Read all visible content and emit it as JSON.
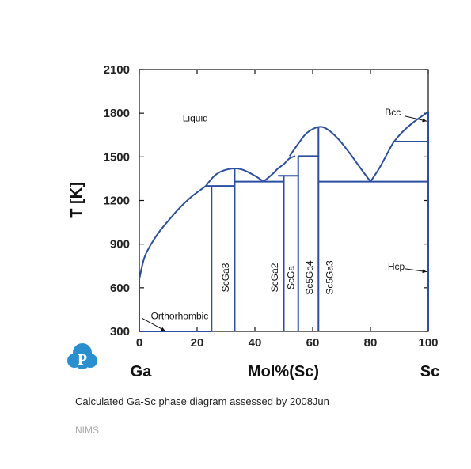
{
  "chart_data": {
    "type": "line",
    "subtype": "phase-diagram",
    "xlabel": "Mol%(Sc)",
    "ylabel": "T [K]",
    "xlim": [
      0,
      100
    ],
    "ylim": [
      300,
      2100
    ],
    "x_ticks": [
      0,
      20,
      40,
      60,
      80,
      100
    ],
    "y_ticks": [
      300,
      600,
      900,
      1200,
      1500,
      1800,
      2100
    ],
    "x_end_labels": {
      "left": "Ga",
      "right": "Sc"
    },
    "grid": false,
    "line_color": "#2a4ea0",
    "liquidus": [
      {
        "name": "Ga-rich liquidus",
        "points": [
          [
            0,
            660
          ],
          [
            2,
            820
          ],
          [
            6,
            960
          ],
          [
            10,
            1060
          ],
          [
            14,
            1150
          ],
          [
            18,
            1225
          ],
          [
            21,
            1270
          ],
          [
            23,
            1300
          ]
        ]
      },
      {
        "name": "ScGa3 liquidus",
        "points": [
          [
            23,
            1300
          ],
          [
            26,
            1370
          ],
          [
            29,
            1405
          ],
          [
            33,
            1420
          ],
          [
            36,
            1410
          ],
          [
            40,
            1370
          ],
          [
            43,
            1330
          ]
        ]
      },
      {
        "name": "ScGa2 liquidus",
        "points": [
          [
            43,
            1330
          ],
          [
            46,
            1380
          ],
          [
            48,
            1420
          ],
          [
            50,
            1450
          ],
          [
            52,
            1490
          ],
          [
            54,
            1505
          ]
        ]
      },
      {
        "name": "Sc5Ga4 liquidus",
        "points": [
          [
            52,
            1505
          ],
          [
            55,
            1590
          ],
          [
            58,
            1665
          ],
          [
            62,
            1705
          ],
          [
            65,
            1690
          ],
          [
            69,
            1620
          ],
          [
            73,
            1520
          ],
          [
            77,
            1410
          ],
          [
            80,
            1330
          ]
        ]
      },
      {
        "name": "Sc-rich liquidus",
        "points": [
          [
            80,
            1330
          ],
          [
            83,
            1420
          ],
          [
            86,
            1530
          ],
          [
            88,
            1600
          ],
          [
            91,
            1670
          ],
          [
            95,
            1740
          ],
          [
            100,
            1810
          ]
        ]
      }
    ],
    "horizontals": [
      {
        "y": 300,
        "x": [
          0,
          25
        ]
      },
      {
        "y": 1300,
        "x": [
          23,
          25
        ]
      },
      {
        "y": 1300,
        "x": [
          25,
          33
        ]
      },
      {
        "y": 1330,
        "x": [
          33,
          43
        ]
      },
      {
        "y": 1330,
        "x": [
          43,
          50
        ]
      },
      {
        "y": 1370,
        "x": [
          50,
          55
        ]
      },
      {
        "y": 1370,
        "x": [
          48,
          50
        ]
      },
      {
        "y": 1505,
        "x": [
          55,
          62
        ]
      },
      {
        "y": 1330,
        "x": [
          62,
          100
        ]
      },
      {
        "y": 1605,
        "x": [
          88,
          100
        ]
      }
    ],
    "verticals": [
      {
        "x": 25,
        "y": [
          300,
          1300
        ]
      },
      {
        "x": 33,
        "y": [
          300,
          1420
        ]
      },
      {
        "x": 50,
        "y": [
          300,
          1370
        ]
      },
      {
        "x": 55,
        "y": [
          300,
          1505
        ]
      },
      {
        "x": 62,
        "y": [
          300,
          1705
        ]
      },
      {
        "x": 0,
        "y": [
          300,
          660
        ]
      },
      {
        "x": 100,
        "y": [
          300,
          1810
        ]
      }
    ],
    "phase_labels": [
      {
        "text": "Liquid",
        "x": 15,
        "y": 1745,
        "rotate": false
      },
      {
        "text": "Orthorhombic",
        "x": 4,
        "y": 385,
        "rotate": false
      },
      {
        "text": "Bcc",
        "x": 85,
        "y": 1785,
        "rotate": false
      },
      {
        "text": "Hcp",
        "x": 86,
        "y": 725,
        "rotate": false
      },
      {
        "text": "ScGa3",
        "x": 31,
        "y": 670,
        "rotate": true
      },
      {
        "text": "ScGa2",
        "x": 48,
        "y": 670,
        "rotate": true
      },
      {
        "text": "ScGa",
        "x": 53.5,
        "y": 670,
        "rotate": true
      },
      {
        "text": "Sc5Ga4",
        "x": 60,
        "y": 670,
        "rotate": true
      },
      {
        "text": "Sc5Ga3",
        "x": 67,
        "y": 670,
        "rotate": true
      }
    ],
    "arrows": [
      {
        "from": [
          1,
          390
        ],
        "to": [
          9,
          303
        ]
      },
      {
        "from": [
          92,
          1780
        ],
        "to": [
          99.5,
          1745
        ]
      },
      {
        "from": [
          92,
          730
        ],
        "to": [
          99.5,
          710
        ]
      }
    ]
  },
  "caption": {
    "text": "Calculated Ga-Sc phase diagram assessed by",
    "year": "2008Jun"
  },
  "organization": "NIMS",
  "logo": {
    "letter": "P",
    "color": "#2a8fcf"
  }
}
